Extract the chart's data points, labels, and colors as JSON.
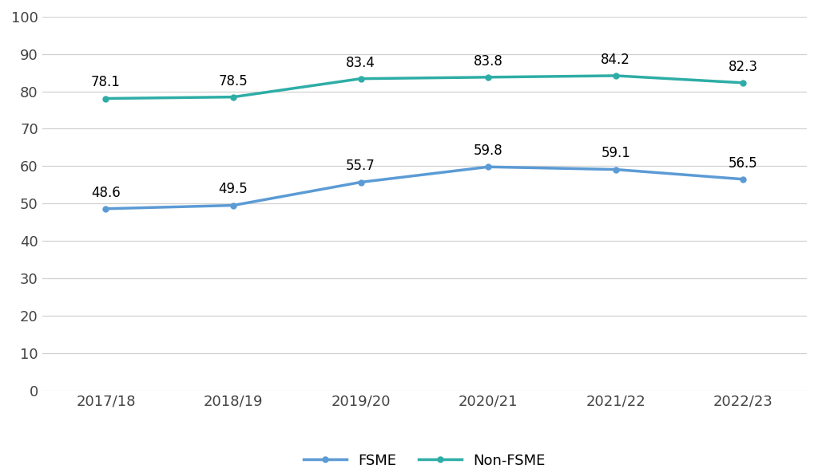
{
  "years": [
    "2017/18",
    "2018/19",
    "2019/20",
    "2020/21",
    "2021/22",
    "2022/23"
  ],
  "fsme": [
    48.6,
    49.5,
    55.7,
    59.8,
    59.1,
    56.5
  ],
  "non_fsme": [
    78.1,
    78.5,
    83.4,
    83.8,
    84.2,
    82.3
  ],
  "fsme_color": "#5b9bd5",
  "non_fsme_color": "#2eada6",
  "background_color": "#ffffff",
  "ylim": [
    0,
    100
  ],
  "yticks": [
    0,
    10,
    20,
    30,
    40,
    50,
    60,
    70,
    80,
    90,
    100
  ],
  "legend_labels": [
    "FSME",
    "Non-FSME"
  ],
  "line_width": 2.5,
  "marker_size": 5,
  "tick_fontsize": 13,
  "legend_fontsize": 13,
  "annotation_fontsize": 12,
  "grid_color": "#d0d0d0"
}
